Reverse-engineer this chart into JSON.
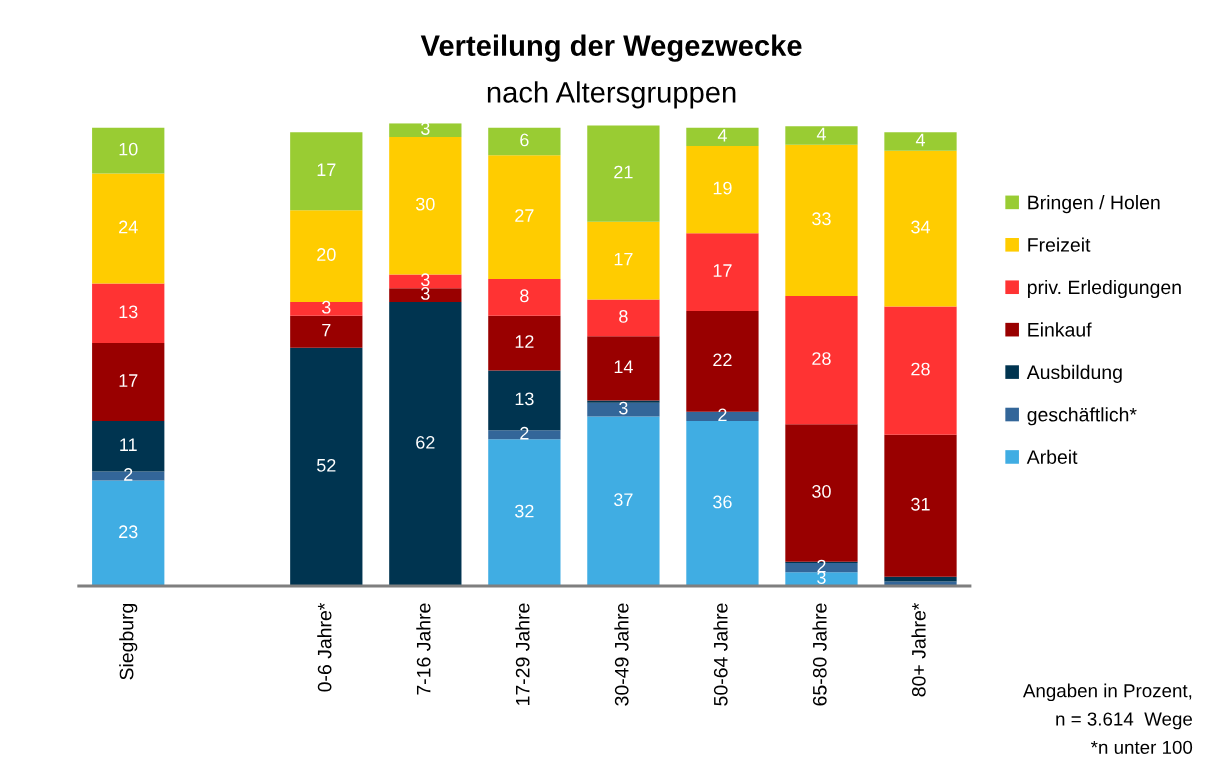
{
  "chart_data": {
    "type": "bar",
    "stacked": true,
    "title": "Verteilung der Wegezwecke",
    "subtitle": "nach Altersgruppen",
    "categories": [
      "Siegburg",
      null,
      "0-6 Jahre*",
      "7-16 Jahre",
      "17-29 Jahre",
      "30-49 Jahre",
      "50-64 Jahre",
      "65-80 Jahre",
      "80+ Jahre*"
    ],
    "ylim": [
      0,
      101
    ],
    "tick_labels": "x",
    "grid": false,
    "legend": "right",
    "series": [
      {
        "name": "Arbeit",
        "color": "#40ade3",
        "values": [
          23,
          null,
          0,
          0,
          32,
          37,
          36,
          3,
          0
        ],
        "value_labels": [
          "23",
          null,
          null,
          null,
          "32",
          "37",
          "36",
          "3",
          null
        ]
      },
      {
        "name": "geschäftlich*",
        "color": "#336699",
        "values": [
          2,
          null,
          0,
          0,
          2,
          3,
          2,
          2,
          1
        ],
        "value_labels": [
          "2",
          null,
          null,
          null,
          "2",
          "3",
          "2",
          "2",
          null
        ]
      },
      {
        "name": "Ausbildung",
        "color": "#003450",
        "values": [
          11,
          null,
          52,
          62,
          13,
          0.5,
          0,
          0.3,
          1
        ],
        "value_labels": [
          "11",
          null,
          "52",
          "62",
          "13",
          null,
          null,
          null,
          null
        ]
      },
      {
        "name": "Einkauf",
        "color": "#990000",
        "values": [
          17,
          null,
          7,
          3,
          12,
          14,
          22,
          30,
          31
        ],
        "value_labels": [
          "17",
          null,
          "7",
          "3",
          "12",
          "14",
          "22",
          "30",
          "31"
        ]
      },
      {
        "name": "priv. Erledigungen",
        "color": "#ff3333",
        "values": [
          13,
          null,
          3,
          3,
          8,
          8,
          17,
          28,
          28
        ],
        "value_labels": [
          "13",
          null,
          "3",
          "3",
          "8",
          "8",
          "17",
          "28",
          "28"
        ]
      },
      {
        "name": "Freizeit",
        "color": "#ffcc00",
        "values": [
          24,
          null,
          20,
          30,
          27,
          17,
          19,
          33,
          34
        ],
        "value_labels": [
          "24",
          null,
          "20",
          "30",
          "27",
          "17",
          "19",
          "33",
          "34"
        ]
      },
      {
        "name": "Bringen / Holen",
        "color": "#99cc33",
        "values": [
          10,
          null,
          17,
          3,
          6,
          21,
          4,
          4,
          4
        ],
        "value_labels": [
          "10",
          null,
          "17",
          "3",
          "6",
          "21",
          "4",
          "4",
          "4"
        ]
      }
    ],
    "annotations": [
      "Angaben in Prozent,",
      "n = 3.614  Wege",
      "*n unter 100"
    ]
  }
}
